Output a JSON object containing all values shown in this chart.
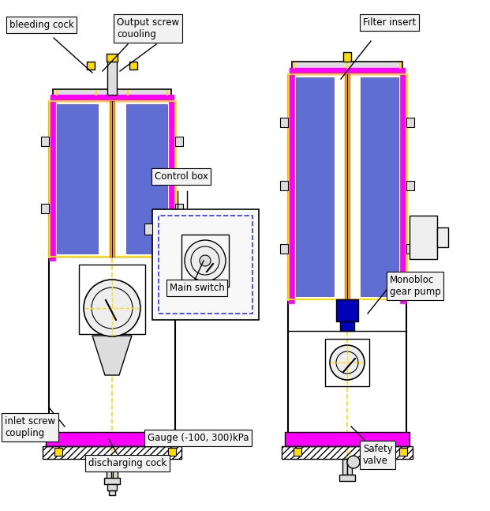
{
  "bg": "#ffffff",
  "black": "#000000",
  "magenta": "#ff00ff",
  "yellow": "#ffdd00",
  "blue_fill": "#4455cc",
  "blue_dark": "#0000bb",
  "orange": "#ffaa00",
  "gray_light": "#dddddd",
  "gray_mid": "#aaaaaa",
  "dashed_blue": "#3333ff",
  "label_bg": "#f2f2f2",
  "labels": {
    "bleeding_cock": "bleeding cock",
    "output_screw": "Output screw\ncouoling",
    "control_box": "Control box",
    "main_switch": "Main switch",
    "inlet_screw": "inlet screw\ncoupling",
    "discharging": "discharging cock",
    "gauge": "Gauge (-100, 300)kPa",
    "filter_insert": "Filter insert",
    "monobloc": "Monobloc\ngear pump",
    "safety_valve": "Safety\nvalve"
  }
}
